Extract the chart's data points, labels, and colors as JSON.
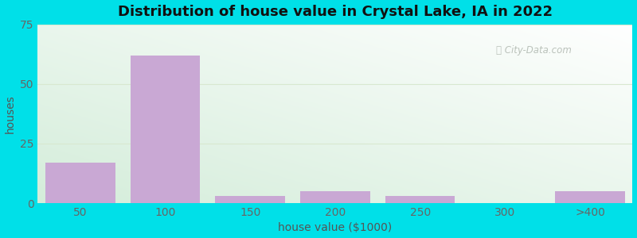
{
  "title": "Distribution of house value in Crystal Lake, IA in 2022",
  "xlabel": "house value ($1000)",
  "ylabel": "houses",
  "bar_labels": [
    "50",
    "100",
    "150",
    "200",
    "250",
    "300",
    ">400"
  ],
  "bar_values": [
    17,
    62,
    3,
    5,
    3,
    0,
    5
  ],
  "bar_color": "#c9a8d4",
  "ylim": [
    0,
    75
  ],
  "yticks": [
    0,
    25,
    50,
    75
  ],
  "background_outer": "#00e0e8",
  "background_inner": "#f0f8ed",
  "grid_color": "#d8e8d0",
  "title_color": "#111111",
  "label_color": "#555555",
  "tick_color": "#666666",
  "bar_width": 0.82,
  "figsize": [
    8.0,
    3.0
  ],
  "dpi": 100
}
